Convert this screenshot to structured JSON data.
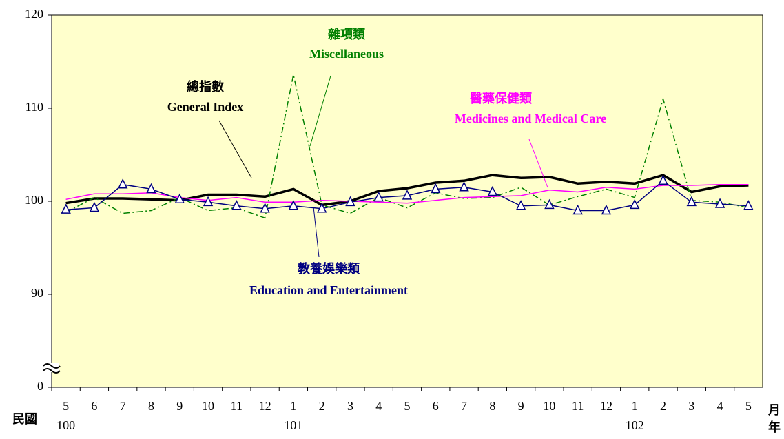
{
  "chart_data": {
    "type": "line",
    "categories": [
      "5",
      "6",
      "7",
      "8",
      "9",
      "10",
      "11",
      "12",
      "1",
      "2",
      "3",
      "4",
      "5",
      "6",
      "7",
      "8",
      "9",
      "10",
      "11",
      "12",
      "1",
      "2",
      "3",
      "4",
      "5"
    ],
    "years": [
      "100",
      null,
      null,
      null,
      null,
      null,
      null,
      null,
      "101",
      null,
      null,
      null,
      null,
      null,
      null,
      null,
      null,
      null,
      null,
      null,
      "102",
      null,
      null,
      null,
      null
    ],
    "year_prefix": "民國",
    "xlabel_month": "月",
    "xlabel_year": "年",
    "ylim": [
      0,
      120
    ],
    "axis_break": [
      0,
      80
    ],
    "yticks": [
      0,
      90,
      100,
      110,
      120
    ],
    "background": "#ffffcc",
    "series": [
      {
        "name": "總指數",
        "name_en": "General Index",
        "color": "#000000",
        "style": "solid-thick",
        "values": [
          99.8,
          100.3,
          100.3,
          100.2,
          100.1,
          100.7,
          100.7,
          100.5,
          101.3,
          99.6,
          100.0,
          101.1,
          101.4,
          102.0,
          102.2,
          102.8,
          102.5,
          102.6,
          101.9,
          102.1,
          101.9,
          102.8,
          101.0,
          101.6,
          101.7
        ]
      },
      {
        "name": "雜項類",
        "name_en": "Miscellaneous",
        "color": "#008000",
        "style": "dash-dot",
        "values": [
          98.8,
          100.4,
          98.7,
          99.0,
          100.4,
          99.0,
          99.3,
          98.2,
          113.6,
          99.6,
          98.7,
          100.4,
          99.3,
          100.9,
          100.3,
          100.4,
          101.5,
          99.6,
          100.5,
          101.3,
          100.4,
          111.0,
          100.1,
          99.9,
          99.3
        ]
      },
      {
        "name": "醫藥保健類",
        "name_en": "Medicines and Medical Care",
        "color": "#ff00ff",
        "style": "solid",
        "values": [
          100.2,
          100.8,
          100.8,
          100.9,
          100.4,
          100.1,
          100.4,
          99.9,
          99.9,
          100.1,
          100.0,
          99.9,
          99.8,
          100.1,
          100.4,
          100.5,
          100.6,
          101.2,
          101.0,
          101.5,
          101.3,
          101.7,
          101.7,
          101.8,
          101.8
        ]
      },
      {
        "name": "教養娛樂類",
        "name_en": "Education and Entertainment",
        "color": "#000080",
        "style": "triangle",
        "values": [
          99.1,
          99.3,
          101.8,
          101.3,
          100.2,
          99.9,
          99.5,
          99.2,
          99.5,
          99.2,
          99.9,
          100.4,
          100.6,
          101.3,
          101.5,
          101.0,
          99.5,
          99.6,
          99.0,
          99.0,
          99.6,
          102.2,
          99.9,
          99.7,
          99.5
        ]
      }
    ]
  }
}
